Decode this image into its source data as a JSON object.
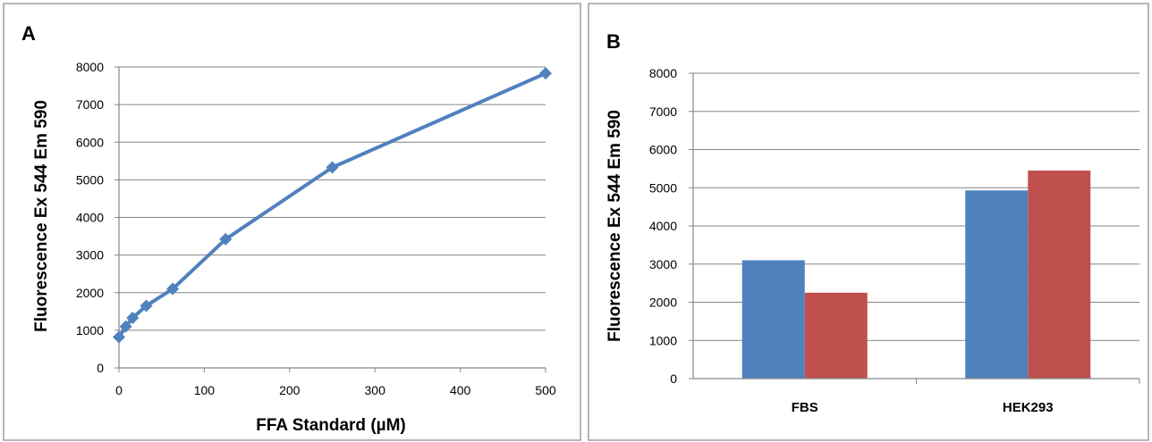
{
  "colors": {
    "line_series": "#4F81BD",
    "bar_series_1": "#4F81BD",
    "bar_series_2": "#C0504D",
    "grid": "#868686",
    "border": "#868686"
  },
  "chart_data": [
    {
      "type": "line",
      "panel_label": "A",
      "title": "",
      "xlabel": "FFA Standard (µM)",
      "ylabel": "Fluorescence Ex 544 Em 590",
      "xlim": [
        0,
        500
      ],
      "ylim": [
        0,
        8000
      ],
      "x_ticks": [
        0,
        100,
        200,
        300,
        400,
        500
      ],
      "y_ticks": [
        0,
        1000,
        2000,
        3000,
        4000,
        5000,
        6000,
        7000,
        8000
      ],
      "grid": "horizontal",
      "legend": "none",
      "series": [
        {
          "marker": "diamond",
          "x": [
            0,
            8,
            16,
            32,
            63,
            125,
            250,
            500
          ],
          "y": [
            820,
            1100,
            1330,
            1650,
            2100,
            3420,
            5330,
            7830
          ]
        }
      ]
    },
    {
      "type": "bar",
      "panel_label": "B",
      "title": "",
      "xlabel": "",
      "ylabel": "Fluorescence Ex 544 Em 590",
      "ylim": [
        0,
        8000
      ],
      "y_ticks": [
        0,
        1000,
        2000,
        3000,
        4000,
        5000,
        6000,
        7000,
        8000
      ],
      "grid": "horizontal",
      "legend": "none",
      "categories": [
        "FBS",
        "HEK293"
      ],
      "series": [
        {
          "values": [
            3100,
            4930
          ]
        },
        {
          "values": [
            2250,
            5450
          ]
        }
      ]
    }
  ]
}
